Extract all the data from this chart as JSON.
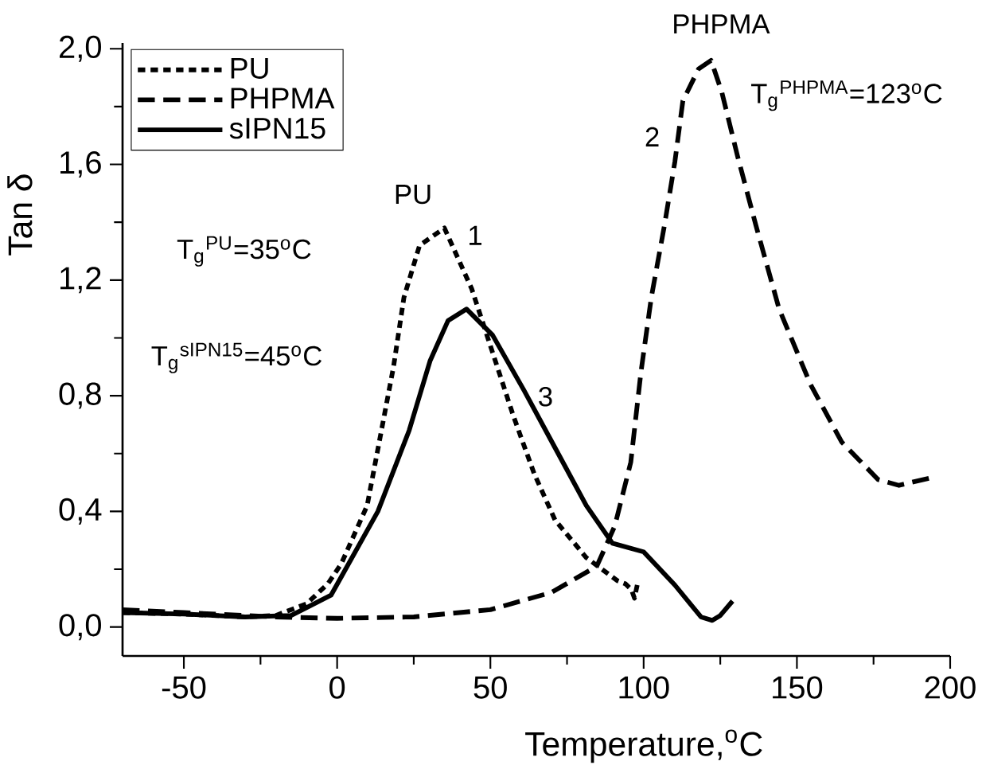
{
  "chart_data": {
    "type": "line",
    "xlabel": "Temperature,$^{o}$C",
    "ylabel": "Tan δ",
    "xlim": [
      -70,
      200
    ],
    "ylim": [
      -0.1,
      2.02
    ],
    "xticks": [
      -50,
      0,
      50,
      100,
      150,
      200,
      {
        "value": -25,
        "label": null
      },
      {
        "value": 25,
        "label": null
      },
      {
        "value": 75,
        "label": null
      },
      {
        "value": 125,
        "label": null
      },
      {
        "value": 175,
        "label": null
      }
    ],
    "yticks": [
      {
        "value": 0,
        "label": "0,0"
      },
      {
        "value": 0.4,
        "label": "0,4"
      },
      {
        "value": 0.8,
        "label": "0,8"
      },
      {
        "value": 1.2,
        "label": "1,2"
      },
      {
        "value": 1.6,
        "label": "1,6"
      },
      {
        "value": 2.0,
        "label": "2,0"
      },
      {
        "value": 0.2,
        "label": null
      },
      {
        "value": 0.6,
        "label": null
      },
      {
        "value": 1.0,
        "label": null
      },
      {
        "value": 1.4,
        "label": null
      },
      {
        "value": 1.8,
        "label": null
      }
    ],
    "legend": "top left",
    "grid": false,
    "marker": "none",
    "series": [
      {
        "name": "PU",
        "color": "#000000",
        "line_style": "dotted",
        "x": [
          -70,
          -50,
          -30,
          -20,
          -10,
          -3,
          1.4,
          9.8,
          18.4,
          21.8,
          26.9,
          35,
          43.9,
          50.7,
          57.5,
          64.3,
          71.1,
          81.3,
          91.5,
          94,
          96,
          97,
          98
        ],
        "values": [
          0.05,
          0.045,
          0.035,
          0.04,
          0.08,
          0.15,
          0.22,
          0.42,
          0.9,
          1.14,
          1.32,
          1.38,
          1.17,
          0.95,
          0.73,
          0.53,
          0.37,
          0.24,
          0.16,
          0.15,
          0.13,
          0.1,
          0.15
        ]
      },
      {
        "name": "PHPMA",
        "color": "#000000",
        "line_style": "dashed",
        "x": [
          -70,
          -50,
          -20,
          0,
          25,
          50,
          70,
          84.7,
          90.6,
          95.8,
          99.1,
          102.5,
          106.8,
          110.2,
          112.8,
          117.9,
          122,
          125.5,
          130.6,
          136.6,
          144.2,
          154.4,
          164.6,
          176.5,
          183.3,
          195.2
        ],
        "values": [
          0.06,
          0.05,
          0.035,
          0.03,
          0.035,
          0.06,
          0.12,
          0.21,
          0.35,
          0.57,
          0.88,
          1.14,
          1.39,
          1.61,
          1.82,
          1.93,
          1.96,
          1.85,
          1.63,
          1.39,
          1.1,
          0.84,
          0.64,
          0.51,
          0.49,
          0.52
        ]
      },
      {
        "name": "sIPN15",
        "color": "#000000",
        "line_style": "solid",
        "x": [
          -70,
          -50,
          -30,
          -15,
          -2,
          13.3,
          23.5,
          30.3,
          36.2,
          42.2,
          50.7,
          60.9,
          71.1,
          81.3,
          89.8,
          100,
          110.2,
          118.7,
          122.4,
          125,
          129
        ],
        "values": [
          0.05,
          0.045,
          0.035,
          0.04,
          0.11,
          0.4,
          0.68,
          0.92,
          1.06,
          1.1,
          1.01,
          0.82,
          0.62,
          0.42,
          0.29,
          0.26,
          0.145,
          0.035,
          0.023,
          0.04,
          0.09
        ]
      }
    ],
    "annotations": [
      "PU",
      "1",
      "T$_{g}$$^{PU}$=35$^{o}$C",
      "T$_{g}$$^{sIPN15}$=45$^{o}$C",
      "3",
      "2",
      "PHPMA",
      "T$_{g}$$^{PHPMA}$=123$^{o}$C"
    ]
  }
}
